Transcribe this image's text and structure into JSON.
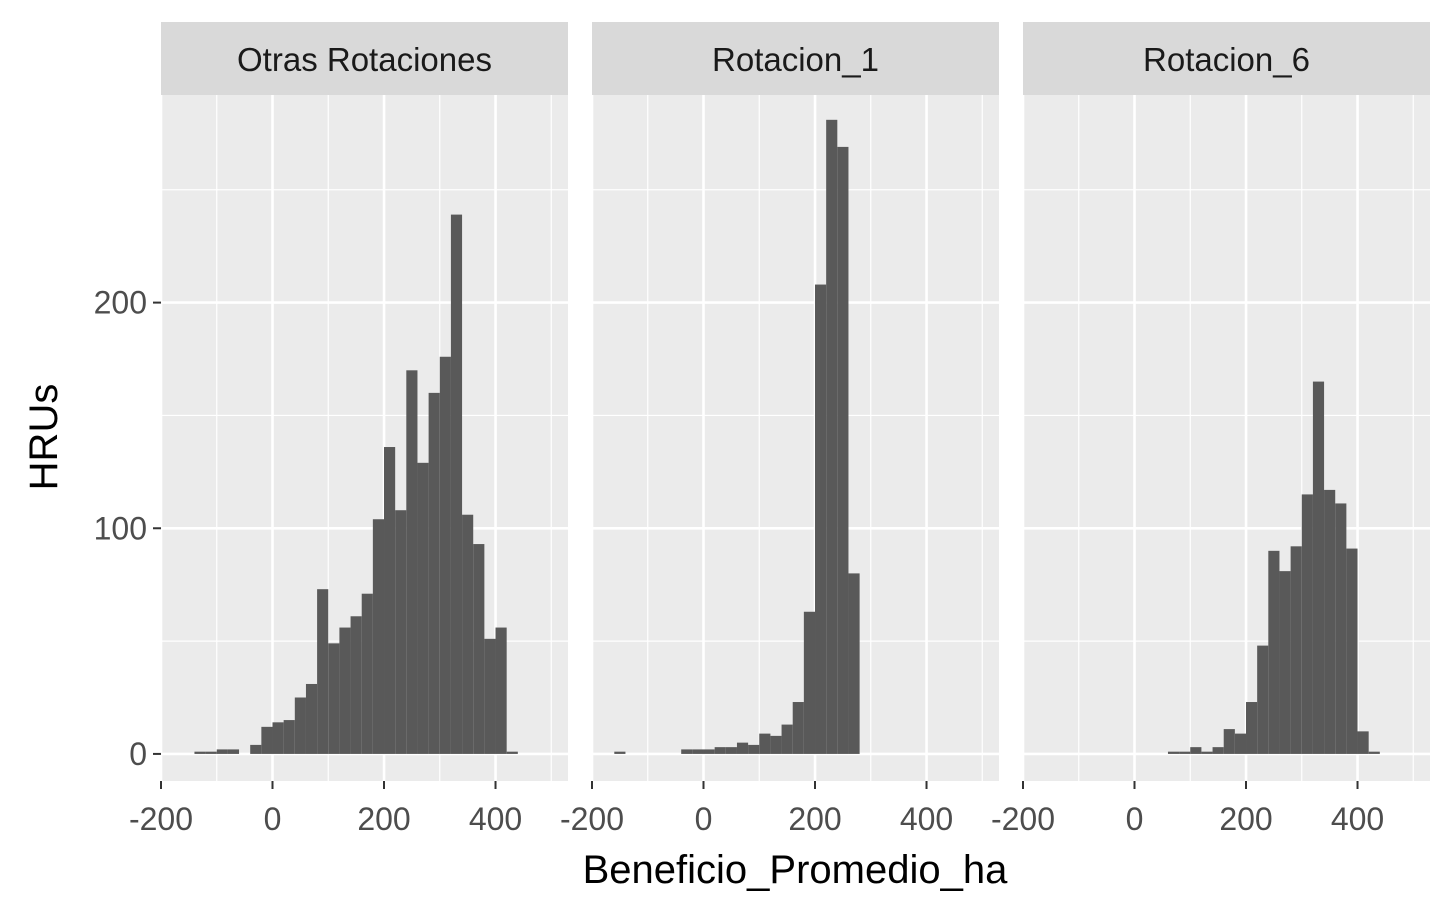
{
  "chart_data": {
    "type": "bar",
    "title": "",
    "xlabel": "Beneficio_Promedio_ha",
    "ylabel": "HRUs",
    "xlim": [
      -200,
      530
    ],
    "ylim": [
      -12,
      292
    ],
    "x_ticks": [
      "-200",
      "0",
      "200",
      "400"
    ],
    "x_tick_values": [
      -200,
      0,
      200,
      400
    ],
    "x_minor_tick_values": [
      -100,
      100,
      300,
      500
    ],
    "y_ticks": [
      "0",
      "100",
      "200"
    ],
    "y_tick_values": [
      0,
      100,
      200
    ],
    "y_minor_tick_values": [
      50,
      150,
      250
    ],
    "bin_width": 20,
    "bar_color": "#595959",
    "panel_background": "#ebebeb",
    "strip_background": "#d9d9d9",
    "grid": true,
    "facets": [
      {
        "label": "Otras Rotaciones",
        "bins": [
          {
            "x": -130,
            "count": 1
          },
          {
            "x": -110,
            "count": 1
          },
          {
            "x": -90,
            "count": 2
          },
          {
            "x": -70,
            "count": 2
          },
          {
            "x": -30,
            "count": 4
          },
          {
            "x": -10,
            "count": 12
          },
          {
            "x": 10,
            "count": 14
          },
          {
            "x": 30,
            "count": 15
          },
          {
            "x": 50,
            "count": 25
          },
          {
            "x": 70,
            "count": 31
          },
          {
            "x": 90,
            "count": 73
          },
          {
            "x": 110,
            "count": 49
          },
          {
            "x": 130,
            "count": 56
          },
          {
            "x": 150,
            "count": 61
          },
          {
            "x": 170,
            "count": 71
          },
          {
            "x": 190,
            "count": 104
          },
          {
            "x": 210,
            "count": 136
          },
          {
            "x": 230,
            "count": 108
          },
          {
            "x": 250,
            "count": 170
          },
          {
            "x": 270,
            "count": 129
          },
          {
            "x": 290,
            "count": 160
          },
          {
            "x": 310,
            "count": 176
          },
          {
            "x": 330,
            "count": 239
          },
          {
            "x": 350,
            "count": 106
          },
          {
            "x": 370,
            "count": 93
          },
          {
            "x": 390,
            "count": 51
          },
          {
            "x": 410,
            "count": 56
          },
          {
            "x": 430,
            "count": 1
          }
        ]
      },
      {
        "label": "Rotacion_1",
        "bins": [
          {
            "x": -150,
            "count": 1
          },
          {
            "x": -30,
            "count": 2
          },
          {
            "x": -10,
            "count": 2
          },
          {
            "x": 10,
            "count": 2
          },
          {
            "x": 30,
            "count": 3
          },
          {
            "x": 50,
            "count": 3
          },
          {
            "x": 70,
            "count": 5
          },
          {
            "x": 90,
            "count": 4
          },
          {
            "x": 110,
            "count": 9
          },
          {
            "x": 130,
            "count": 8
          },
          {
            "x": 150,
            "count": 13
          },
          {
            "x": 170,
            "count": 23
          },
          {
            "x": 190,
            "count": 63
          },
          {
            "x": 210,
            "count": 208
          },
          {
            "x": 230,
            "count": 281
          },
          {
            "x": 250,
            "count": 269
          },
          {
            "x": 270,
            "count": 80
          }
        ]
      },
      {
        "label": "Rotacion_6",
        "bins": [
          {
            "x": 70,
            "count": 1
          },
          {
            "x": 90,
            "count": 1
          },
          {
            "x": 110,
            "count": 3
          },
          {
            "x": 130,
            "count": 1
          },
          {
            "x": 150,
            "count": 3
          },
          {
            "x": 170,
            "count": 11
          },
          {
            "x": 190,
            "count": 9
          },
          {
            "x": 210,
            "count": 23
          },
          {
            "x": 230,
            "count": 48
          },
          {
            "x": 250,
            "count": 90
          },
          {
            "x": 270,
            "count": 81
          },
          {
            "x": 290,
            "count": 92
          },
          {
            "x": 310,
            "count": 115
          },
          {
            "x": 330,
            "count": 165
          },
          {
            "x": 350,
            "count": 117
          },
          {
            "x": 370,
            "count": 111
          },
          {
            "x": 390,
            "count": 91
          },
          {
            "x": 410,
            "count": 10
          },
          {
            "x": 430,
            "count": 1
          }
        ]
      }
    ]
  }
}
